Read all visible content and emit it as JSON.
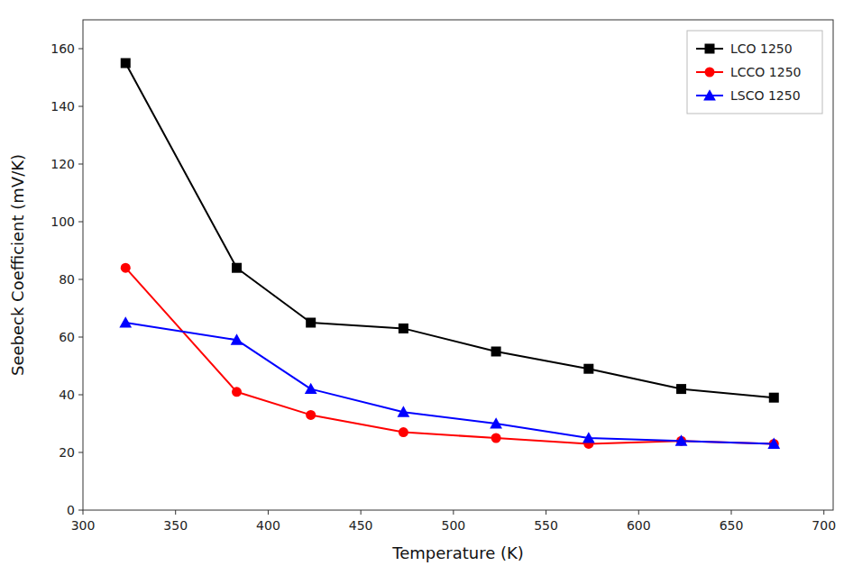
{
  "chart_data": {
    "type": "line",
    "xlabel": "Temperature (K)",
    "ylabel": "Seebeck Coefficient (mV/K)",
    "x": [
      323,
      383,
      423,
      473,
      523,
      573,
      623,
      673
    ],
    "series": [
      {
        "name": "LCO 1250",
        "color": "#000000",
        "marker": "square",
        "values": [
          155,
          84,
          65,
          63,
          55,
          49,
          42,
          39
        ]
      },
      {
        "name": "LCCO 1250",
        "color": "#ff0000",
        "marker": "circle",
        "values": [
          84,
          41,
          33,
          27,
          25,
          23,
          24,
          23
        ]
      },
      {
        "name": "LSCO 1250",
        "color": "#0000ff",
        "marker": "triangle",
        "values": [
          65,
          59,
          42,
          34,
          30,
          25,
          24,
          23
        ]
      }
    ],
    "xlim": [
      300,
      705
    ],
    "ylim": [
      0,
      170
    ],
    "xticks": [
      300,
      350,
      400,
      450,
      500,
      550,
      600,
      650,
      700
    ],
    "yticks": [
      0,
      20,
      40,
      60,
      80,
      100,
      120,
      140,
      160
    ],
    "legend": "upper right",
    "grid": false
  }
}
